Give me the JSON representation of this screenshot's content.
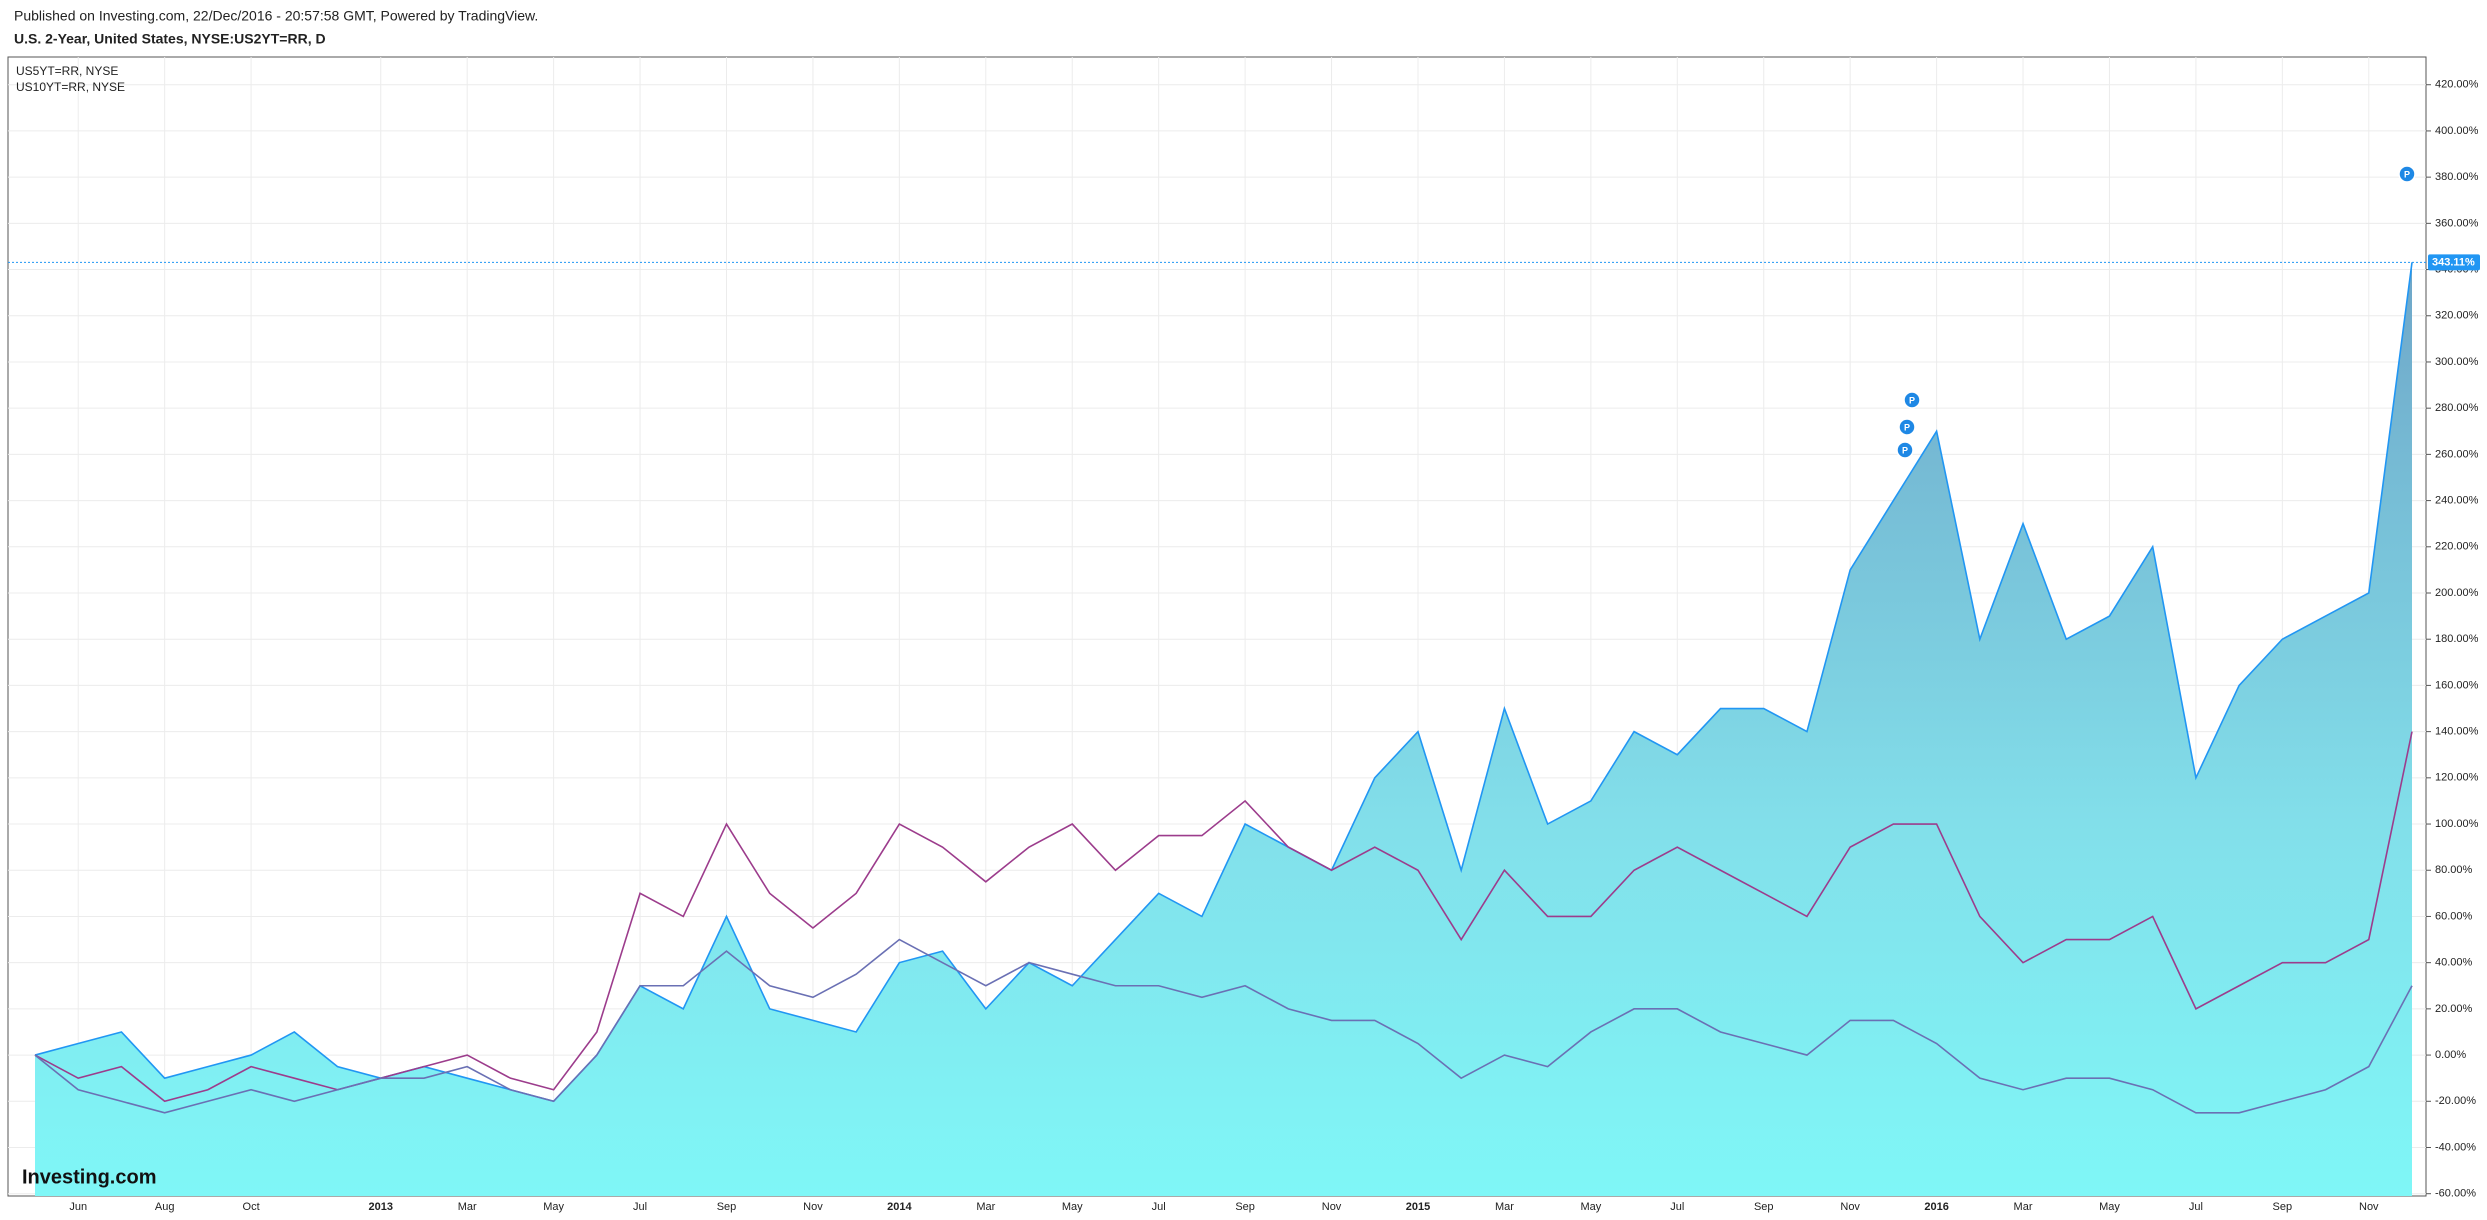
{
  "header": {
    "published": "Published on Investing.com, 22/Dec/2016 - 20:57:58 GMT, Powered by TradingView.",
    "logo": "Investing.com"
  },
  "chart_data": {
    "type": "area",
    "title": "U.S. 2-Year, United States, NYSE:US2YT=RR, D",
    "categories": [
      null,
      "Jun",
      null,
      "Aug",
      null,
      "Oct",
      null,
      null,
      "2013",
      null,
      "Mar",
      null,
      "May",
      null,
      "Jul",
      null,
      "Sep",
      null,
      "Nov",
      null,
      "2014",
      null,
      "Mar",
      null,
      "May",
      null,
      "Jul",
      null,
      "Sep",
      null,
      "Nov",
      null,
      "2015",
      null,
      "Mar",
      null,
      "May",
      null,
      "Jul",
      null,
      "Sep",
      null,
      "Nov",
      null,
      "2016",
      null,
      "Mar",
      null,
      "May",
      null,
      "Jul",
      null,
      "Sep",
      null,
      "Nov",
      null
    ],
    "series": [
      {
        "color": "#2196f3",
        "values": [
          0,
          5,
          10,
          -10,
          -5,
          0,
          10,
          -5,
          -10,
          -5,
          -10,
          -15,
          -20,
          0,
          30,
          20,
          60,
          20,
          15,
          10,
          40,
          45,
          20,
          40,
          30,
          50,
          70,
          60,
          100,
          90,
          80,
          120,
          140,
          80,
          150,
          100,
          110,
          140,
          130,
          150,
          150,
          140,
          210,
          240,
          270,
          180,
          230,
          180,
          190,
          220,
          120,
          160,
          180,
          190,
          200,
          343.11
        ]
      },
      {
        "name": "US5YT=RR, NYSE",
        "color": "#9c3c8c",
        "values": [
          0,
          -10,
          -5,
          -20,
          -15,
          -5,
          -10,
          -15,
          -10,
          -5,
          0,
          -10,
          -15,
          10,
          70,
          60,
          100,
          70,
          55,
          70,
          100,
          90,
          75,
          90,
          100,
          80,
          95,
          95,
          110,
          90,
          80,
          90,
          80,
          50,
          80,
          60,
          60,
          80,
          90,
          80,
          70,
          60,
          90,
          100,
          100,
          60,
          40,
          50,
          50,
          60,
          20,
          30,
          40,
          40,
          50,
          140
        ]
      },
      {
        "name": "US10YT=RR, NYSE",
        "color": "#6a70b4",
        "values": [
          0,
          -15,
          -20,
          -25,
          -20,
          -15,
          -20,
          -15,
          -10,
          -10,
          -5,
          -15,
          -20,
          0,
          30,
          30,
          45,
          30,
          25,
          35,
          50,
          40,
          30,
          40,
          35,
          30,
          30,
          25,
          30,
          20,
          15,
          15,
          5,
          -10,
          0,
          -5,
          10,
          20,
          20,
          10,
          5,
          0,
          15,
          15,
          5,
          -10,
          -15,
          -10,
          -10,
          -15,
          -25,
          -25,
          -20,
          -15,
          -5,
          30
        ]
      }
    ],
    "last_value": {
      "value": 343.11,
      "label": "343.11%"
    },
    "annotations": [
      "P",
      "P",
      "P",
      "P"
    ],
    "ylim": [
      -61,
      432
    ],
    "yticks": [
      {
        "value": -60,
        "label": "-60.00%"
      },
      {
        "value": -40,
        "label": "-40.00%"
      },
      {
        "value": -20,
        "label": "-20.00%"
      },
      {
        "value": 0,
        "label": "0.00%"
      },
      {
        "value": 20,
        "label": "20.00%"
      },
      {
        "value": 40,
        "label": "40.00%"
      },
      {
        "value": 60,
        "label": "60.00%"
      },
      {
        "value": 80,
        "label": "80.00%"
      },
      {
        "value": 100,
        "label": "100.00%"
      },
      {
        "value": 120,
        "label": "120.00%"
      },
      {
        "value": 140,
        "label": "140.00%"
      },
      {
        "value": 160,
        "label": "160.00%"
      },
      {
        "value": 180,
        "label": "180.00%"
      },
      {
        "value": 200,
        "label": "200.00%"
      },
      {
        "value": 220,
        "label": "220.00%"
      },
      {
        "value": 240,
        "label": "240.00%"
      },
      {
        "value": 260,
        "label": "260.00%"
      },
      {
        "value": 280,
        "label": "280.00%"
      },
      {
        "value": 300,
        "label": "300.00%"
      },
      {
        "value": 320,
        "label": "320.00%"
      },
      {
        "value": 340,
        "label": "340.00%"
      },
      {
        "value": 360,
        "label": "360.00%"
      },
      {
        "value": 380,
        "label": "380.00%"
      },
      {
        "value": 400,
        "label": "400.00%"
      },
      {
        "value": 420,
        "label": "420.00%"
      }
    ],
    "grid": true
  }
}
